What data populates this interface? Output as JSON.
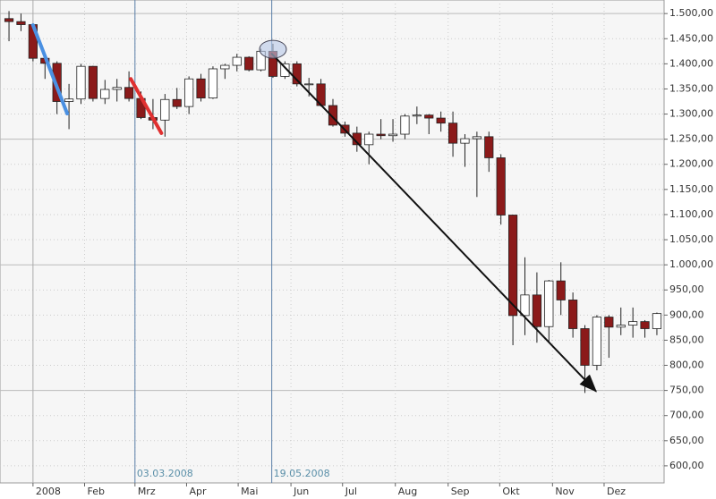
{
  "chart_data": {
    "type": "candlestick",
    "x": [
      0,
      1,
      2,
      3,
      4,
      5,
      6,
      7,
      8,
      9,
      10,
      11,
      12,
      13,
      14,
      15,
      16,
      17,
      18,
      19,
      20,
      21,
      22,
      23,
      24,
      25,
      26,
      27,
      28,
      29,
      30,
      31,
      32,
      33,
      34,
      35,
      36,
      37,
      38,
      39,
      40,
      41,
      42,
      43,
      44,
      45,
      46,
      47,
      48,
      49,
      50,
      51,
      52,
      53,
      54
    ],
    "open": [
      1490,
      1484,
      1478,
      1411,
      1401,
      1325,
      1330,
      1395,
      1331,
      1349,
      1353,
      1331,
      1293,
      1288,
      1329,
      1315,
      1370,
      1332,
      1390,
      1397,
      1413,
      1388,
      1425,
      1375,
      1400,
      1360,
      1360,
      1317,
      1278,
      1262,
      1239,
      1260,
      1257,
      1260,
      1296,
      1298,
      1292,
      1282,
      1242,
      1251,
      1255,
      1213,
      1099,
      899,
      940,
      877,
      968,
      930,
      873,
      800,
      896,
      876,
      880,
      887,
      873
    ],
    "high": [
      1505,
      1500,
      1480,
      1420,
      1405,
      1360,
      1400,
      1396,
      1368,
      1370,
      1385,
      1345,
      1330,
      1340,
      1352,
      1375,
      1380,
      1395,
      1400,
      1420,
      1415,
      1430,
      1440,
      1405,
      1405,
      1372,
      1370,
      1330,
      1285,
      1275,
      1265,
      1290,
      1290,
      1300,
      1315,
      1300,
      1305,
      1305,
      1260,
      1265,
      1265,
      1220,
      1100,
      1015,
      985,
      970,
      1005,
      945,
      880,
      900,
      900,
      915,
      915,
      890,
      905
    ],
    "low": [
      1445,
      1465,
      1405,
      1370,
      1300,
      1270,
      1320,
      1325,
      1320,
      1325,
      1325,
      1290,
      1270,
      1255,
      1310,
      1300,
      1325,
      1330,
      1370,
      1385,
      1385,
      1385,
      1372,
      1370,
      1355,
      1335,
      1315,
      1275,
      1255,
      1225,
      1200,
      1250,
      1245,
      1250,
      1280,
      1260,
      1265,
      1215,
      1195,
      1135,
      1185,
      1080,
      840,
      860,
      845,
      845,
      900,
      855,
      745,
      790,
      815,
      860,
      855,
      855,
      860
    ],
    "close": [
      1484,
      1478,
      1411,
      1401,
      1325,
      1330,
      1395,
      1331,
      1349,
      1353,
      1331,
      1293,
      1288,
      1329,
      1315,
      1370,
      1332,
      1390,
      1397,
      1413,
      1388,
      1425,
      1375,
      1400,
      1360,
      1360,
      1317,
      1278,
      1262,
      1239,
      1260,
      1257,
      1260,
      1296,
      1298,
      1292,
      1282,
      1242,
      1251,
      1255,
      1213,
      1099,
      899,
      940,
      877,
      968,
      930,
      873,
      800,
      896,
      876,
      880,
      887,
      873,
      903
    ],
    "up_color": "#ffffff",
    "down_color": "#8b1a1a",
    "xlim": [
      -0.75,
      54.6
    ],
    "ylim": [
      566,
      1527
    ],
    "xticks": [
      {
        "value": 2.0,
        "label": "2008"
      },
      {
        "value": 6.3,
        "label": "Feb"
      },
      {
        "value": 10.5,
        "label": "Mrz"
      },
      {
        "value": 14.8,
        "label": "Apr"
      },
      {
        "value": 19.1,
        "label": "Mai"
      },
      {
        "value": 23.5,
        "label": "Jun"
      },
      {
        "value": 27.8,
        "label": "Jul"
      },
      {
        "value": 32.2,
        "label": "Aug"
      },
      {
        "value": 36.6,
        "label": "Sep"
      },
      {
        "value": 40.9,
        "label": "Okt"
      },
      {
        "value": 45.3,
        "label": "Nov"
      },
      {
        "value": 49.6,
        "label": "Dez"
      }
    ],
    "yticks": [
      {
        "value": 600,
        "label": "600,00"
      },
      {
        "value": 650,
        "label": "650,00"
      },
      {
        "value": 700,
        "label": "700,00"
      },
      {
        "value": 750,
        "label": "750,00"
      },
      {
        "value": 800,
        "label": "800,00"
      },
      {
        "value": 850,
        "label": "850,00"
      },
      {
        "value": 900,
        "label": "900,00"
      },
      {
        "value": 950,
        "label": "950,00"
      },
      {
        "value": 1000,
        "label": "1.000,00"
      },
      {
        "value": 1050,
        "label": "1.050,00"
      },
      {
        "value": 1100,
        "label": "1.100,00"
      },
      {
        "value": 1150,
        "label": "1.150,00"
      },
      {
        "value": 1200,
        "label": "1.200,00"
      },
      {
        "value": 1250,
        "label": "1.250,00"
      },
      {
        "value": 1300,
        "label": "1.300,00"
      },
      {
        "value": 1350,
        "label": "1.350,00"
      },
      {
        "value": 1400,
        "label": "1.400,00"
      },
      {
        "value": 1450,
        "label": "1.450,00"
      },
      {
        "value": 1500,
        "label": "1.500,00"
      }
    ],
    "major_yticks": [
      750,
      1000,
      1250,
      1500
    ],
    "grid": true,
    "markers": [
      {
        "x": 10.5,
        "label": "03.03.2008"
      },
      {
        "x": 21.9,
        "label": "19.05.2008"
      }
    ],
    "trendlines": [
      {
        "x": [
          2.0,
          4.85
        ],
        "y": [
          1477,
          1301
        ],
        "color": "#4a90e2",
        "arrow": false
      },
      {
        "x": [
          10.15,
          12.7
        ],
        "y": [
          1370,
          1262
        ],
        "color": "#e03030",
        "arrow": false
      },
      {
        "x": [
          21.9,
          48.9
        ],
        "y": [
          1420,
          749
        ],
        "color": "#111111",
        "arrow": true
      }
    ],
    "highlight": {
      "x": 22.0,
      "y": 1429,
      "color": "#b8c8e8"
    }
  }
}
